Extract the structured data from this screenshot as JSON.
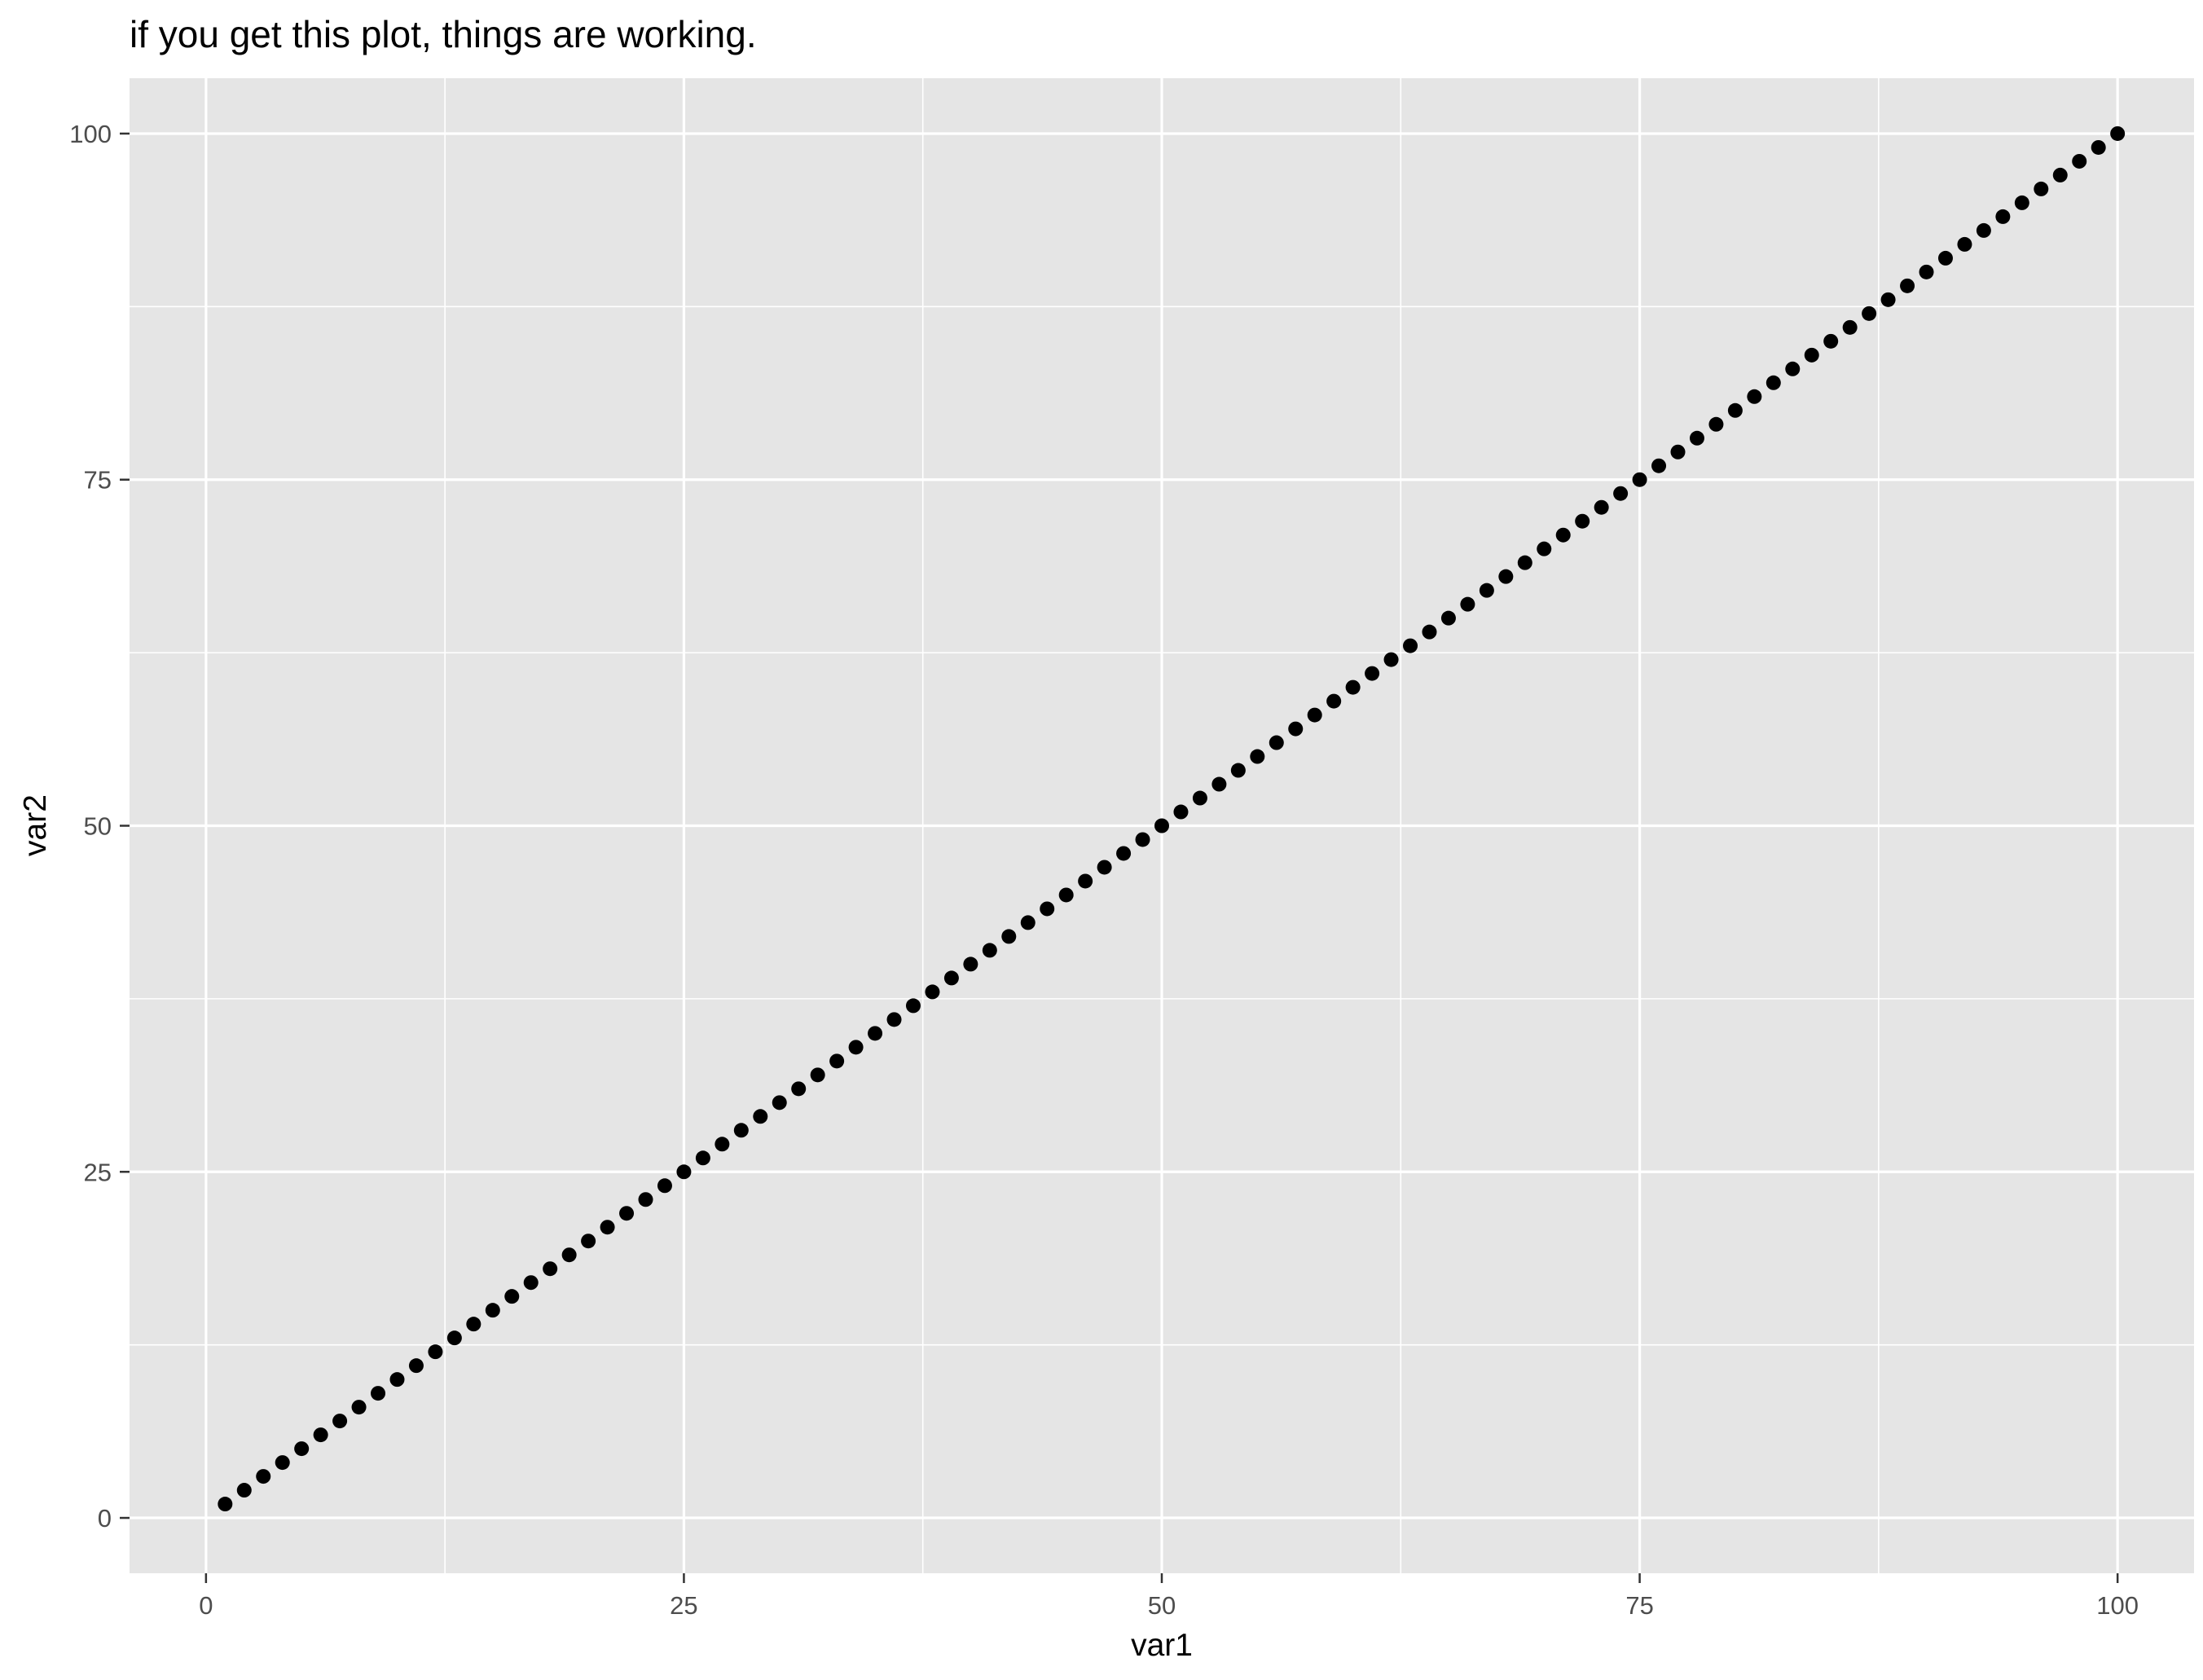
{
  "chart_data": {
    "type": "scatter",
    "title": "if you get this plot, things are working.",
    "xlabel": "var1",
    "ylabel": "var2",
    "xlim": [
      -4,
      104
    ],
    "ylim": [
      -4,
      104
    ],
    "xticks": [
      0,
      25,
      50,
      75,
      100
    ],
    "yticks": [
      0,
      25,
      50,
      75,
      100
    ],
    "xtick_labels": [
      "0",
      "25",
      "50",
      "75",
      "100"
    ],
    "ytick_labels": [
      "0",
      "25",
      "50",
      "75",
      "100"
    ],
    "grid": true,
    "legend": "none",
    "colors": {
      "panel": "#e5e5e5",
      "grid": "#ffffff",
      "point": "#000000",
      "tick": "#333333",
      "tick_label": "#4d4d4d"
    },
    "series": [
      {
        "x": [
          1,
          2,
          3,
          4,
          5,
          6,
          7,
          8,
          9,
          10,
          11,
          12,
          13,
          14,
          15,
          16,
          17,
          18,
          19,
          20,
          21,
          22,
          23,
          24,
          25,
          26,
          27,
          28,
          29,
          30,
          31,
          32,
          33,
          34,
          35,
          36,
          37,
          38,
          39,
          40,
          41,
          42,
          43,
          44,
          45,
          46,
          47,
          48,
          49,
          50,
          51,
          52,
          53,
          54,
          55,
          56,
          57,
          58,
          59,
          60,
          61,
          62,
          63,
          64,
          65,
          66,
          67,
          68,
          69,
          70,
          71,
          72,
          73,
          74,
          75,
          76,
          77,
          78,
          79,
          80,
          81,
          82,
          83,
          84,
          85,
          86,
          87,
          88,
          89,
          90,
          91,
          92,
          93,
          94,
          95,
          96,
          97,
          98,
          99,
          100
        ],
        "y": [
          1,
          2,
          3,
          4,
          5,
          6,
          7,
          8,
          9,
          10,
          11,
          12,
          13,
          14,
          15,
          16,
          17,
          18,
          19,
          20,
          21,
          22,
          23,
          24,
          25,
          26,
          27,
          28,
          29,
          30,
          31,
          32,
          33,
          34,
          35,
          36,
          37,
          38,
          39,
          40,
          41,
          42,
          43,
          44,
          45,
          46,
          47,
          48,
          49,
          50,
          51,
          52,
          53,
          54,
          55,
          56,
          57,
          58,
          59,
          60,
          61,
          62,
          63,
          64,
          65,
          66,
          67,
          68,
          69,
          70,
          71,
          72,
          73,
          74,
          75,
          76,
          77,
          78,
          79,
          80,
          81,
          82,
          83,
          84,
          85,
          86,
          87,
          88,
          89,
          90,
          91,
          92,
          93,
          94,
          95,
          96,
          97,
          98,
          99,
          100
        ]
      }
    ]
  }
}
